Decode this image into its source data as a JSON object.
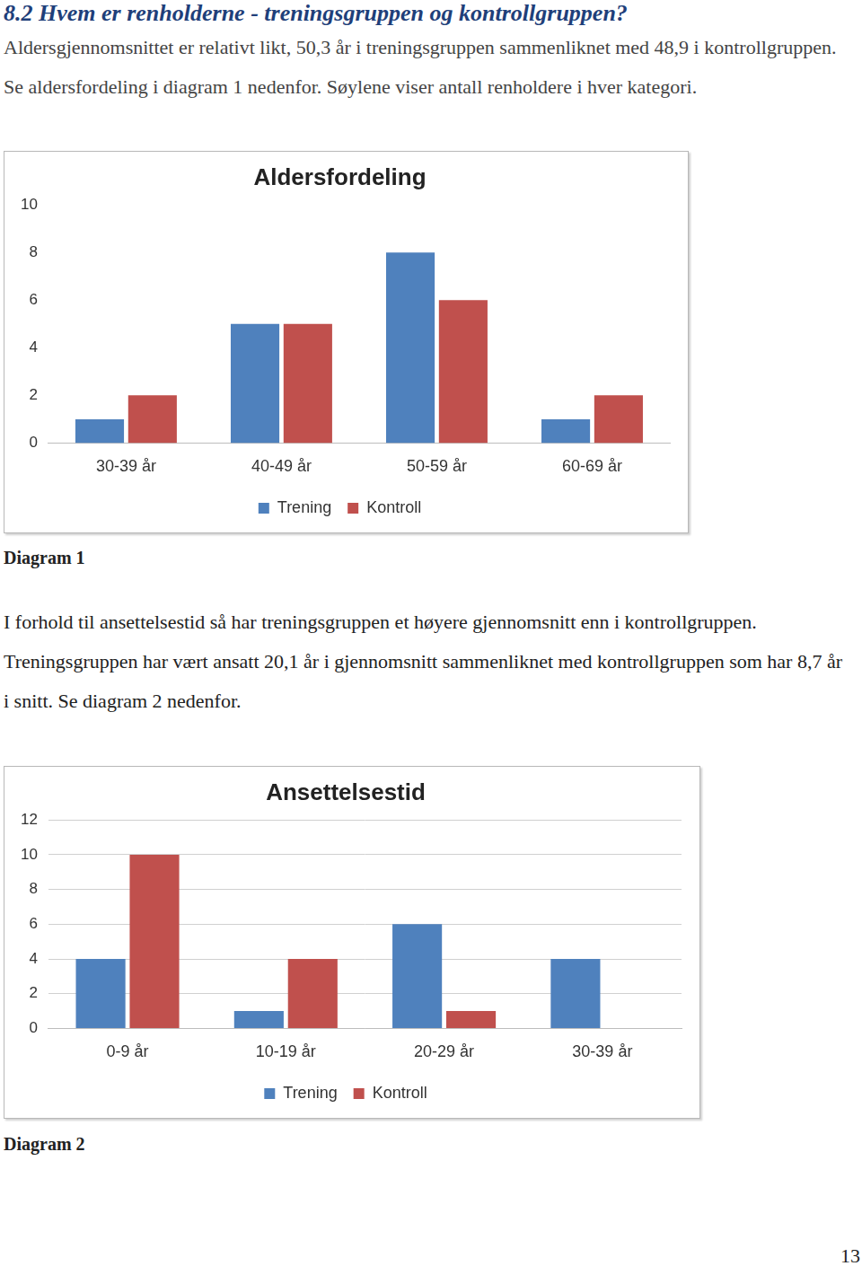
{
  "document": {
    "heading": "8.2 Hvem er renholderne - treningsgruppen og kontrollgruppen?",
    "paragraph_1": "Aldersgjennomsnittet er relativt likt, 50,3 år i treningsgruppen sammenliknet med 48,9 i kontrollgruppen. Se aldersfordeling i diagram 1 nedenfor. Søylene viser antall renholdere i hver kategori.",
    "caption_1": "Diagram 1",
    "paragraph_2": "I forhold til ansettelsestid så har treningsgruppen et høyere gjennomsnitt enn i kontrollgruppen. Treningsgruppen har vært ansatt 20,1 år i gjennomsnitt sammenliknet med kontrollgruppen som har 8,7 år i snitt. Se diagram 2 nedenfor.",
    "caption_2": "Diagram 2",
    "page_number": "13"
  },
  "chart_data": [
    {
      "type": "bar",
      "title": "Aldersfordeling",
      "categories": [
        "30-39 år",
        "40-49 år",
        "50-59 år",
        "60-69 år"
      ],
      "series": [
        {
          "name": "Trening",
          "color": "#4f81bd",
          "values": [
            1,
            5,
            8,
            1
          ]
        },
        {
          "name": "Kontroll",
          "color": "#c0504d",
          "values": [
            2,
            5,
            6,
            2
          ]
        }
      ],
      "ylim": [
        0,
        10
      ],
      "yticks": [
        0,
        2,
        4,
        6,
        8,
        10
      ],
      "grid": false,
      "legend": "bottom"
    },
    {
      "type": "bar",
      "title": "Ansettelsestid",
      "categories": [
        "0-9 år",
        "10-19 år",
        "20-29 år",
        "30-39 år"
      ],
      "series": [
        {
          "name": "Trening",
          "color": "#4f81bd",
          "values": [
            4,
            1,
            6,
            4
          ]
        },
        {
          "name": "Kontroll",
          "color": "#c0504d",
          "values": [
            10,
            4,
            1,
            0
          ]
        }
      ],
      "ylim": [
        0,
        12
      ],
      "yticks": [
        0,
        2,
        4,
        6,
        8,
        10,
        12
      ],
      "grid": true,
      "legend": "bottom"
    }
  ]
}
